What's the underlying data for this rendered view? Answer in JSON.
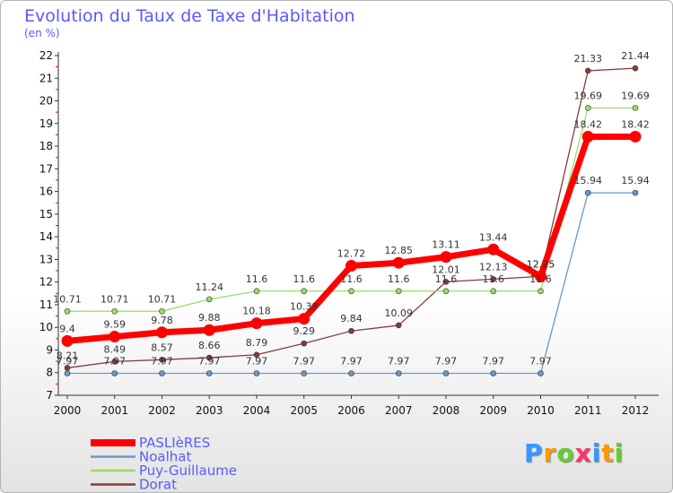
{
  "chart_data": {
    "type": "line",
    "title": "Evolution du Taux de Taxe d'Habitation",
    "subtitle": "(en %)",
    "categories": [
      "2000",
      "2001",
      "2002",
      "2003",
      "2004",
      "2005",
      "2006",
      "2007",
      "2008",
      "2009",
      "2010",
      "2011",
      "2012"
    ],
    "y_ticks": [
      "7",
      "8",
      "9",
      "10",
      "11",
      "12",
      "13",
      "14",
      "15",
      "16",
      "17",
      "18",
      "19",
      "20",
      "21",
      "22"
    ],
    "ylim": [
      7,
      22
    ],
    "series": [
      {
        "name": "PASLIèRES",
        "color": "#ff0000",
        "values": [
          9.4,
          9.59,
          9.78,
          9.88,
          10.18,
          10.38,
          12.72,
          12.85,
          13.11,
          13.44,
          12.25,
          18.42,
          18.42
        ],
        "labels": [
          "9.4",
          "9.59",
          "9.78",
          "9.88",
          "10.18",
          "10.38",
          "12.72",
          "12.85",
          "13.11",
          "13.44",
          "12.25",
          "18.42",
          "18.42"
        ]
      },
      {
        "name": "Noalhat",
        "color": "#6699cc",
        "values": [
          7.97,
          7.97,
          7.97,
          7.97,
          7.97,
          7.97,
          7.97,
          7.97,
          7.97,
          7.97,
          7.97,
          15.94,
          15.94
        ],
        "labels": [
          "7.97",
          "7.97",
          "7.97",
          "7.97",
          "7.97",
          "7.97",
          "7.97",
          "7.97",
          "7.97",
          "7.97",
          "7.97",
          "15.94",
          "15.94"
        ]
      },
      {
        "name": "Puy-Guillaume",
        "color": "#99dd66",
        "values": [
          10.71,
          10.71,
          10.71,
          11.24,
          11.6,
          11.6,
          11.6,
          11.6,
          11.6,
          11.6,
          11.6,
          19.69,
          19.69
        ],
        "labels": [
          "10.71",
          "10.71",
          "10.71",
          "11.24",
          "11.6",
          "11.6",
          "11.6",
          "11.6",
          "11.6",
          "11.6",
          "11.6",
          "19.69",
          "19.69"
        ]
      },
      {
        "name": "Dorat",
        "color": "#8b3a3a",
        "values": [
          8.21,
          8.49,
          8.57,
          8.66,
          8.79,
          9.29,
          9.84,
          10.09,
          12.01,
          12.13,
          12.25,
          21.33,
          21.44
        ],
        "labels": [
          "8.21",
          "8.49",
          "8.57",
          "8.66",
          "8.79",
          "9.29",
          "9.84",
          "10.09",
          "12.01",
          "12.13",
          "12.25",
          "21.33",
          "21.44"
        ]
      }
    ],
    "legend_position": "bottom-left",
    "grid": false
  },
  "logo": {
    "letters": [
      {
        "ch": "P",
        "color": "#3399ff"
      },
      {
        "ch": "r",
        "color": "#ff9900"
      },
      {
        "ch": "o",
        "color": "#66cc33"
      },
      {
        "ch": "x",
        "color": "#ff3366"
      },
      {
        "ch": "i",
        "color": "#3399ff"
      },
      {
        "ch": "t",
        "color": "#ff9900"
      },
      {
        "ch": "i",
        "color": "#66cc33"
      }
    ]
  }
}
